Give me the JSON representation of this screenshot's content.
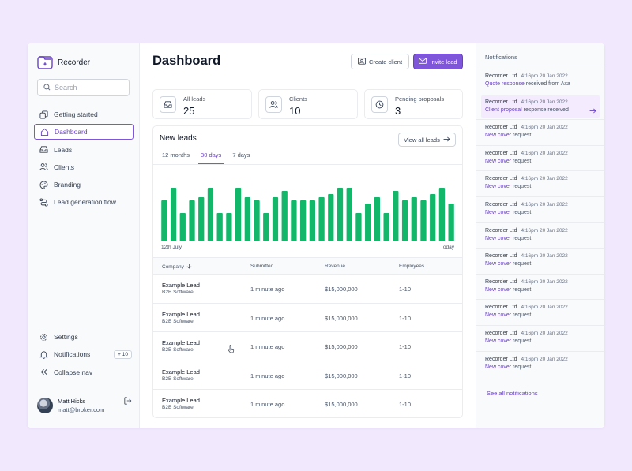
{
  "app": {
    "name": "Recorder"
  },
  "search": {
    "placeholder": "Search"
  },
  "nav": {
    "items": [
      {
        "label": "Getting started",
        "icon": "copy-icon"
      },
      {
        "label": "Dashboard",
        "icon": "home-icon",
        "active": true
      },
      {
        "label": "Leads",
        "icon": "inbox-icon"
      },
      {
        "label": "Clients",
        "icon": "users-icon"
      },
      {
        "label": "Branding",
        "icon": "palette-icon"
      },
      {
        "label": "Lead generation flow",
        "icon": "flow-icon"
      }
    ],
    "bottom": [
      {
        "label": "Settings",
        "icon": "gear-icon"
      },
      {
        "label": "Notifications",
        "icon": "bell-icon",
        "badge": "+ 10"
      },
      {
        "label": "Collapse nav",
        "icon": "chevrons-left-icon"
      }
    ]
  },
  "user": {
    "name": "Matt Hicks",
    "email": "matt@broker.com"
  },
  "header": {
    "title": "Dashboard",
    "create_client": "Create client",
    "invite_lead": "Invite lead"
  },
  "stats": [
    {
      "label": "All leads",
      "value": "25",
      "icon": "inbox-icon"
    },
    {
      "label": "Clients",
      "value": "10",
      "icon": "users-icon"
    },
    {
      "label": "Pending proposals",
      "value": "3",
      "icon": "clock-icon"
    }
  ],
  "leads": {
    "title": "New leads",
    "view_all": "View all leads",
    "tabs": [
      "12 months",
      "30 days",
      "7 days"
    ],
    "active_tab": 1
  },
  "chart_data": {
    "type": "bar",
    "x_start_label": "12th July",
    "x_end_label": "Today",
    "values": [
      65,
      85,
      45,
      65,
      70,
      85,
      45,
      45,
      85,
      70,
      65,
      45,
      70,
      80,
      65,
      65,
      65,
      70,
      75,
      85,
      85,
      45,
      60,
      70,
      45,
      80,
      65,
      70,
      65,
      75,
      85,
      60
    ],
    "ylim": [
      0,
      90
    ],
    "color": "#12b76a"
  },
  "table": {
    "columns": [
      "Company",
      "Submitted",
      "Revenue",
      "Employees"
    ],
    "rows": [
      {
        "company": "Example Lead",
        "sector": "B2B Software",
        "submitted": "1 minute ago",
        "revenue": "$15,000,000",
        "employees": "1-10"
      },
      {
        "company": "Example Lead",
        "sector": "B2B Software",
        "submitted": "1 minute ago",
        "revenue": "$15,000,000",
        "employees": "1-10"
      },
      {
        "company": "Example Lead",
        "sector": "B2B Software",
        "submitted": "1 minute ago",
        "revenue": "$15,000,000",
        "employees": "1-10"
      },
      {
        "company": "Example Lead",
        "sector": "B2B Software",
        "submitted": "1 minute ago",
        "revenue": "$15,000,000",
        "employees": "1-10"
      },
      {
        "company": "Example Lead",
        "sector": "B2B Software",
        "submitted": "1 minute ago",
        "revenue": "$15,000,000",
        "employees": "1-10"
      }
    ]
  },
  "notifications": {
    "title": "Notifications",
    "see_all": "See all notifications",
    "items": [
      {
        "from": "Recorder Ltd",
        "time": "4:16pm 20 Jan 2022",
        "link": "Quote response",
        "text": " received from Axa"
      },
      {
        "from": "Recorder Ltd",
        "time": "4:16pm 20 Jan 2022",
        "link": "Client proposal",
        "text": " response received",
        "highlight": true
      },
      {
        "from": "Recorder Ltd",
        "time": "4:16pm 20 Jan 2022",
        "link": "New cover",
        "text": " request"
      },
      {
        "from": "Recorder Ltd",
        "time": "4:16pm 20 Jan 2022",
        "link": "New cover",
        "text": " request"
      },
      {
        "from": "Recorder Ltd",
        "time": "4:16pm 20 Jan 2022",
        "link": "New cover",
        "text": " request"
      },
      {
        "from": "Recorder Ltd",
        "time": "4:16pm 20 Jan 2022",
        "link": "New cover",
        "text": " request"
      },
      {
        "from": "Recorder Ltd",
        "time": "4:16pm 20 Jan 2022",
        "link": "New cover",
        "text": " request"
      },
      {
        "from": "Recorder Ltd",
        "time": "4:16pm 20 Jan 2022",
        "link": "New cover",
        "text": " request"
      },
      {
        "from": "Recorder Ltd",
        "time": "4:16pm 20 Jan 2022",
        "link": "New cover",
        "text": " request"
      },
      {
        "from": "Recorder Ltd",
        "time": "4:16pm 20 Jan 2022",
        "link": "New cover",
        "text": " request"
      },
      {
        "from": "Recorder Ltd",
        "time": "4:16pm 20 Jan 2022",
        "link": "New cover",
        "text": " request"
      },
      {
        "from": "Recorder Ltd",
        "time": "4:16pm 20 Jan 2022",
        "link": "New cover",
        "text": " request"
      }
    ]
  }
}
